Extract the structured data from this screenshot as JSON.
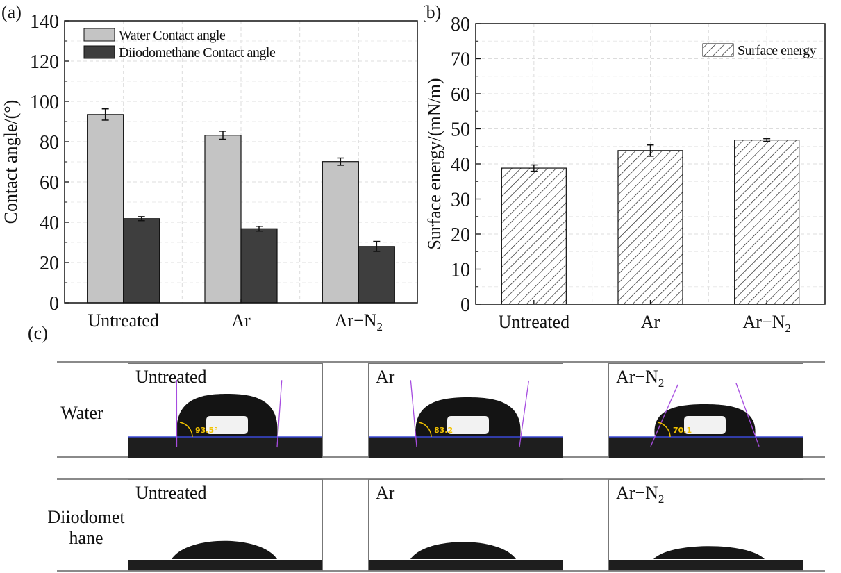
{
  "panel_labels": {
    "a": "(a)",
    "b": "(b)",
    "c": "(c)"
  },
  "chart_data": [
    {
      "type": "bar",
      "panel": "(a)",
      "title": "",
      "xlabel": "",
      "ylabel": "Contact angle/(°)",
      "categories": [
        "Untreated",
        "Ar",
        "Ar−N2"
      ],
      "ylim": [
        0,
        140
      ],
      "yticks": [
        0,
        20,
        40,
        60,
        80,
        100,
        120,
        140
      ],
      "grid": true,
      "legend_position": "top-left",
      "series": [
        {
          "name": "Water Contact angle",
          "color": "#c4c4c4",
          "values": [
            93.5,
            83.2,
            70.1
          ],
          "errors": [
            2.8,
            2.0,
            1.8
          ]
        },
        {
          "name": "Diiodomethane Contact angle",
          "color": "#3e3e3e",
          "values": [
            41.8,
            36.8,
            28.0
          ],
          "errors": [
            1.0,
            1.2,
            2.5
          ]
        }
      ]
    },
    {
      "type": "bar",
      "panel": "(b)",
      "title": "",
      "xlabel": "",
      "ylabel": "Surface energy/(mN/m)",
      "categories": [
        "Untreated",
        "Ar",
        "Ar−N2"
      ],
      "ylim": [
        0,
        80
      ],
      "yticks": [
        0,
        10,
        20,
        30,
        40,
        50,
        60,
        70,
        80
      ],
      "grid": true,
      "legend_position": "top-right",
      "series": [
        {
          "name": "Surface energy",
          "pattern": "hatched",
          "values": [
            38.8,
            43.8,
            46.8
          ],
          "errors": [
            0.9,
            1.6,
            0.4
          ]
        }
      ]
    }
  ],
  "photos": {
    "row_labels": [
      "Water",
      "Diiodomethane"
    ],
    "water": [
      {
        "label": "Untreated",
        "angle_label": "93.5°"
      },
      {
        "label": "Ar",
        "angle_label": "83.2"
      },
      {
        "label": "Ar−N2",
        "angle_label": "70.1"
      }
    ],
    "diiodomethane": [
      {
        "label": "Untreated"
      },
      {
        "label": "Ar"
      },
      {
        "label": "Ar−N2"
      }
    ]
  },
  "colors": {
    "water_bar": "#c4c4c4",
    "diiodo_bar": "#3e3e3e",
    "tangent": "#a64ce0",
    "baseline": "#3a48d6",
    "angle_text": "#f2c200"
  }
}
